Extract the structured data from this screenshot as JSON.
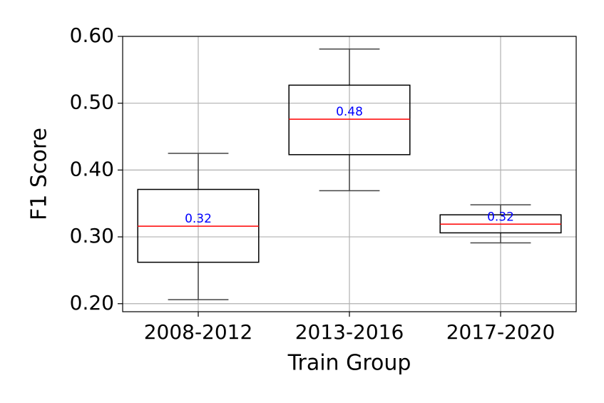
{
  "chart_data": {
    "type": "box",
    "x_label": "Train Group",
    "y_label": "F1 Score",
    "categories": [
      "2008-2012",
      "2013-2016",
      "2017-2020"
    ],
    "min": [
      0.206,
      0.369,
      0.291
    ],
    "q1": [
      0.262,
      0.423,
      0.306
    ],
    "median": [
      0.316,
      0.476,
      0.319
    ],
    "q3": [
      0.371,
      0.527,
      0.333
    ],
    "max": [
      0.425,
      0.581,
      0.348
    ],
    "value_labels": [
      "0.32",
      "0.48",
      "0.32"
    ],
    "ylim": [
      0.188,
      0.6
    ],
    "yticks": [
      {
        "value": 0.2,
        "label": "0.20"
      },
      {
        "value": 0.3,
        "label": "0.30"
      },
      {
        "value": 0.4,
        "label": "0.40"
      },
      {
        "value": 0.5,
        "label": "0.50"
      },
      {
        "value": 0.6,
        "label": "0.60"
      }
    ],
    "grid": true,
    "box_color": "#000000",
    "whisker_color": "#444444",
    "median_color": "#ff0000",
    "label_color": "#0000ff"
  }
}
